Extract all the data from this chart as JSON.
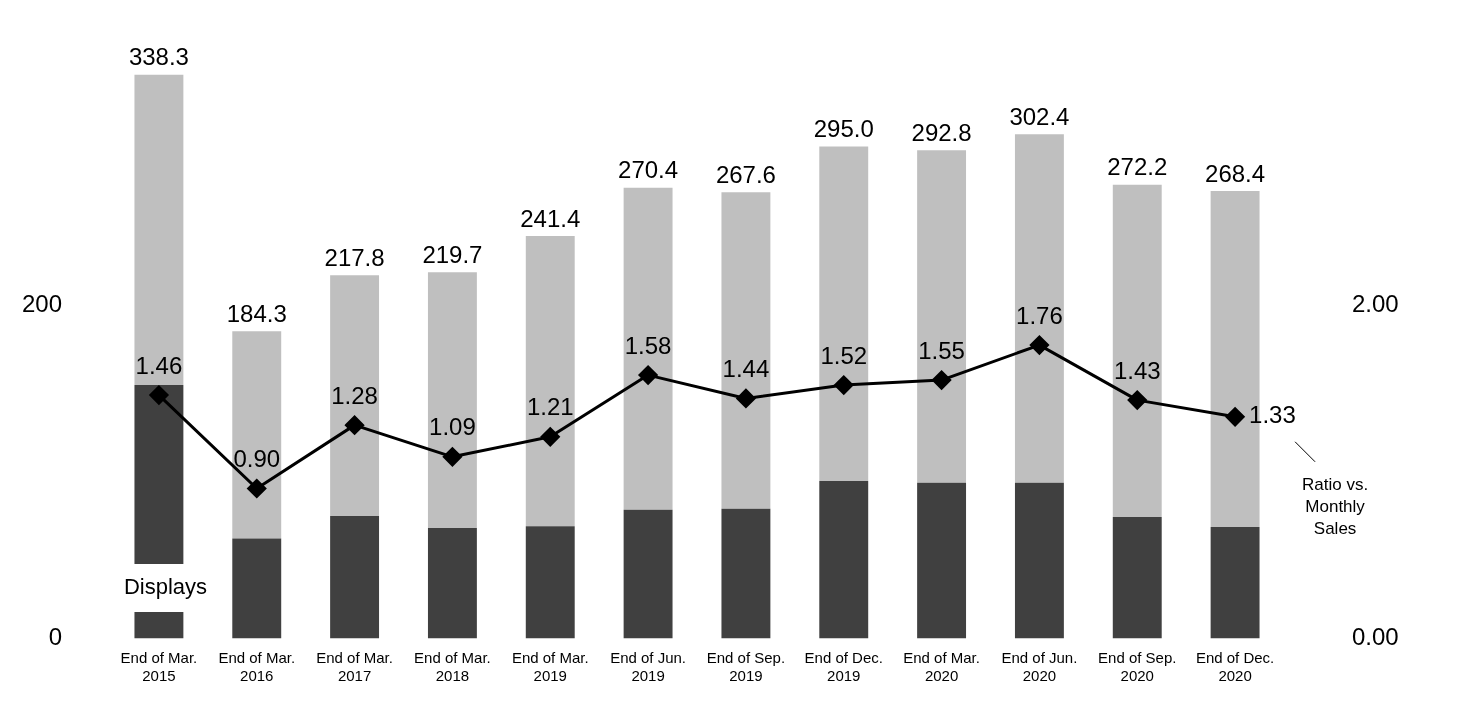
{
  "chart_data": {
    "type": "bar",
    "stacked": true,
    "categories": [
      "End of Mar. 2015",
      "End of Mar. 2016",
      "End of Mar. 2017",
      "End of Mar. 2018",
      "End of Mar. 2019",
      "End of Jun. 2019",
      "End of Sep. 2019",
      "End of Dec. 2019",
      "End of Mar. 2020",
      "End of Jun. 2020",
      "End of Sep. 2020",
      "End of Dec. 2020"
    ],
    "series": [
      {
        "name": "Displays",
        "color": "#404040",
        "values": [
          152,
          60,
          73.5,
          66.3,
          67.4,
          77.3,
          77.9,
          94.5,
          93.4,
          93.4,
          72.9,
          66.9
        ]
      },
      {
        "color": "#bfbfbf",
        "values": [
          186.3,
          124.3,
          144.3,
          153.4,
          174,
          193.1,
          189.7,
          200.5,
          199.4,
          209,
          199.3,
          201.5
        ]
      },
      {
        "name": "Ratio vs. Monthly Sales",
        "type": "line",
        "axis": "y2",
        "color": "#000000",
        "marker": "diamond",
        "line_style": "solid",
        "values": [
          1.46,
          0.9,
          1.28,
          1.09,
          1.21,
          1.58,
          1.44,
          1.52,
          1.55,
          1.76,
          1.43,
          1.33
        ],
        "value_labels": [
          "1.46",
          "0.90",
          "1.28",
          "1.09",
          "1.21",
          "1.58",
          "1.44",
          "1.52",
          "1.55",
          "1.76",
          "1.43",
          "1.33"
        ]
      }
    ],
    "totals": [
      "338.3",
      "184.3",
      "217.8",
      "219.7",
      "241.4",
      "270.4",
      "267.6",
      "295.0",
      "292.8",
      "302.4",
      "272.2",
      "268.4"
    ],
    "ylim": [
      0,
      338.3
    ],
    "yticks": [
      0,
      200
    ],
    "y2lim": [
      0,
      3.383
    ],
    "y2ticks": [
      {
        "value": 0,
        "label": "0.00"
      },
      {
        "value": 2,
        "label": "2.00"
      }
    ],
    "grid": false,
    "legend": "right"
  }
}
